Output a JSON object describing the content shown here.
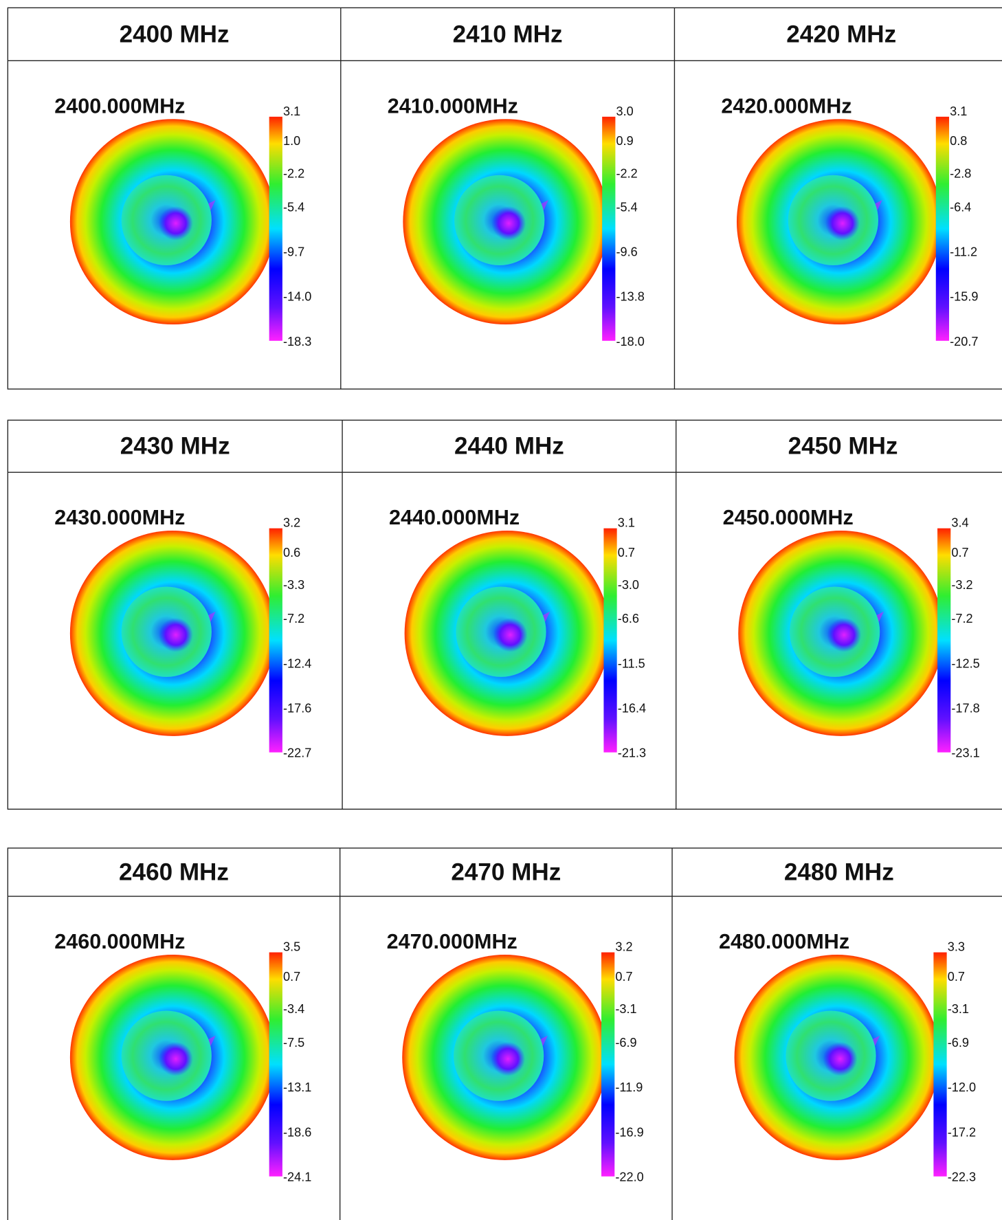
{
  "tables": [
    {
      "cells": [
        {
          "header": "2400 MHz",
          "plot_title": "2400.000MHz",
          "scale": [
            "3.1",
            "1.0",
            "-2.2",
            "-5.4",
            "-9.7",
            "-14.0",
            "-18.3"
          ]
        },
        {
          "header": "2410 MHz",
          "plot_title": "2410.000MHz",
          "scale": [
            "3.0",
            "0.9",
            "-2.2",
            "-5.4",
            "-9.6",
            "-13.8",
            "-18.0"
          ]
        },
        {
          "header": "2420 MHz",
          "plot_title": "2420.000MHz",
          "scale": [
            "3.1",
            "0.8",
            "-2.8",
            "-6.4",
            "-11.2",
            "-15.9",
            "-20.7"
          ]
        }
      ]
    },
    {
      "cells": [
        {
          "header": "2430 MHz",
          "plot_title": "2430.000MHz",
          "scale": [
            "3.2",
            "0.6",
            "-3.3",
            "-7.2",
            "-12.4",
            "-17.6",
            "-22.7"
          ]
        },
        {
          "header": "2440 MHz",
          "plot_title": "2440.000MHz",
          "scale": [
            "3.1",
            "0.7",
            "-3.0",
            "-6.6",
            "-11.5",
            "-16.4",
            "-21.3"
          ]
        },
        {
          "header": "2450 MHz",
          "plot_title": "2450.000MHz",
          "scale": [
            "3.4",
            "0.7",
            "-3.2",
            "-7.2",
            "-12.5",
            "-17.8",
            "-23.1"
          ]
        }
      ]
    },
    {
      "cells": [
        {
          "header": "2460 MHz",
          "plot_title": "2460.000MHz",
          "scale": [
            "3.5",
            "0.7",
            "-3.4",
            "-7.5",
            "-13.1",
            "-18.6",
            "-24.1"
          ]
        },
        {
          "header": "2470 MHz",
          "plot_title": "2470.000MHz",
          "scale": [
            "3.2",
            "0.7",
            "-3.1",
            "-6.9",
            "-11.9",
            "-16.9",
            "-22.0"
          ]
        },
        {
          "header": "2480 MHz",
          "plot_title": "2480.000MHz",
          "scale": [
            "3.3",
            "0.7",
            "-3.1",
            "-6.9",
            "-12.0",
            "-17.2",
            "-22.3"
          ]
        }
      ]
    }
  ]
}
